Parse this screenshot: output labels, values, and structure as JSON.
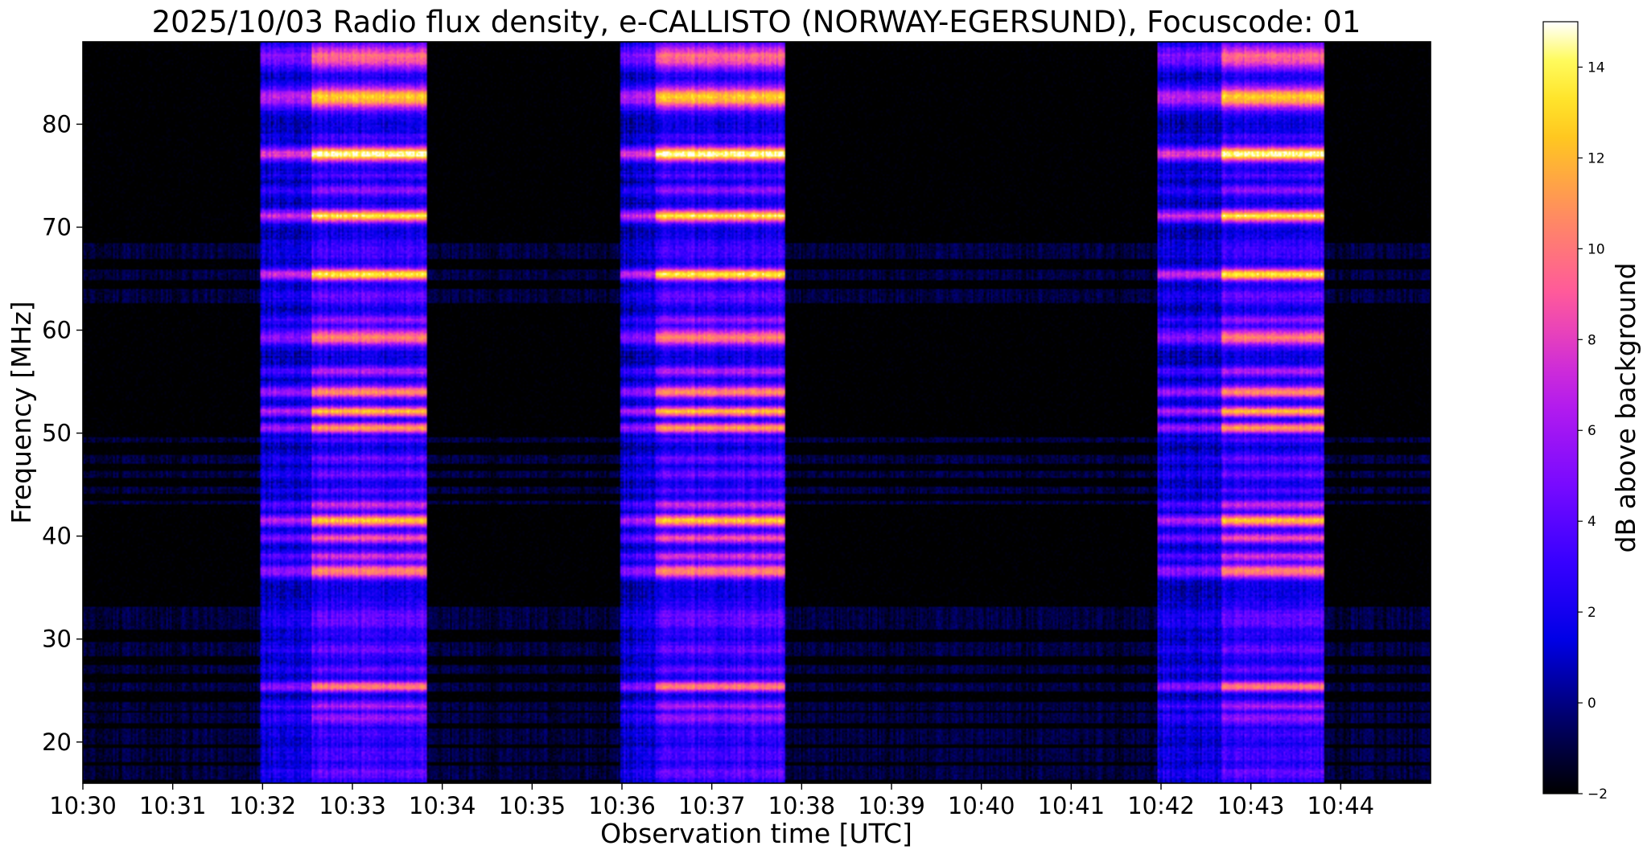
{
  "chart_data": {
    "type": "heatmap",
    "title": "2025/10/03  Radio flux density, e-CALLISTO (NORWAY-EGERSUND), Focuscode: 01",
    "xlabel": "Observation time [UTC]",
    "ylabel": "Frequency [MHz]",
    "colorbar_label": "dB above background",
    "colormap": "gnuplot2",
    "x_range_minutes": [
      0,
      15
    ],
    "x_ticks": [
      {
        "value": 0,
        "label": "10:30"
      },
      {
        "value": 1,
        "label": "10:31"
      },
      {
        "value": 2,
        "label": "10:32"
      },
      {
        "value": 3,
        "label": "10:33"
      },
      {
        "value": 4,
        "label": "10:34"
      },
      {
        "value": 5,
        "label": "10:35"
      },
      {
        "value": 6,
        "label": "10:36"
      },
      {
        "value": 7,
        "label": "10:37"
      },
      {
        "value": 8,
        "label": "10:38"
      },
      {
        "value": 9,
        "label": "10:39"
      },
      {
        "value": 10,
        "label": "10:40"
      },
      {
        "value": 11,
        "label": "10:41"
      },
      {
        "value": 12,
        "label": "10:42"
      },
      {
        "value": 13,
        "label": "10:43"
      },
      {
        "value": 14,
        "label": "10:44"
      }
    ],
    "ylim": [
      16,
      88
    ],
    "y_ticks": [
      {
        "value": 20,
        "label": "20"
      },
      {
        "value": 30,
        "label": "30"
      },
      {
        "value": 40,
        "label": "40"
      },
      {
        "value": 50,
        "label": "50"
      },
      {
        "value": 60,
        "label": "60"
      },
      {
        "value": 70,
        "label": "70"
      },
      {
        "value": 80,
        "label": "80"
      }
    ],
    "clim": [
      -2,
      15
    ],
    "colorbar_ticks": [
      {
        "value": -2,
        "label": "−2"
      },
      {
        "value": 0,
        "label": "0"
      },
      {
        "value": 2,
        "label": "2"
      },
      {
        "value": 4,
        "label": "4"
      },
      {
        "value": 6,
        "label": "6"
      },
      {
        "value": 8,
        "label": "8"
      },
      {
        "value": 10,
        "label": "10"
      },
      {
        "value": 12,
        "label": "12"
      },
      {
        "value": 14,
        "label": "14"
      }
    ],
    "burst_episodes_minutes": [
      {
        "start": 1.97,
        "core_start": 2.55,
        "end": 3.82,
        "peak_db": 13
      },
      {
        "start": 5.98,
        "core_start": 6.38,
        "end": 7.82,
        "peak_db": 14
      },
      {
        "start": 11.97,
        "core_start": 12.68,
        "end": 13.82,
        "peak_db": 13
      }
    ],
    "emission_lanes": [
      {
        "mhz": 17.0,
        "width": 0.8,
        "db": 2.5
      },
      {
        "mhz": 18.8,
        "width": 0.8,
        "db": 2.0
      },
      {
        "mhz": 20.6,
        "width": 0.9,
        "db": 1.5
      },
      {
        "mhz": 22.3,
        "width": 0.6,
        "db": 4.0
      },
      {
        "mhz": 23.5,
        "width": 0.5,
        "db": 4.5
      },
      {
        "mhz": 25.4,
        "width": 0.5,
        "db": 9.0
      },
      {
        "mhz": 27.0,
        "width": 0.5,
        "db": 2.5
      },
      {
        "mhz": 29.0,
        "width": 0.8,
        "db": 2.5
      },
      {
        "mhz": 32.0,
        "width": 1.4,
        "db": 2.5
      },
      {
        "mhz": 36.6,
        "width": 0.7,
        "db": 9.0
      },
      {
        "mhz": 38.0,
        "width": 0.5,
        "db": 6.0
      },
      {
        "mhz": 39.8,
        "width": 0.5,
        "db": 7.0
      },
      {
        "mhz": 41.5,
        "width": 0.6,
        "db": 11.0
      },
      {
        "mhz": 43.0,
        "width": 0.5,
        "db": 5.5
      },
      {
        "mhz": 44.4,
        "width": 0.4,
        "db": 2.0
      },
      {
        "mhz": 46.0,
        "width": 0.5,
        "db": 3.0
      },
      {
        "mhz": 47.5,
        "width": 0.5,
        "db": 3.0
      },
      {
        "mhz": 49.3,
        "width": 0.3,
        "db": 2.0
      },
      {
        "mhz": 50.5,
        "width": 0.5,
        "db": 10.0
      },
      {
        "mhz": 52.1,
        "width": 0.5,
        "db": 10.5
      },
      {
        "mhz": 54.0,
        "width": 0.6,
        "db": 9.0
      },
      {
        "mhz": 56.0,
        "width": 0.5,
        "db": 5.0
      },
      {
        "mhz": 59.3,
        "width": 0.8,
        "db": 9.0
      },
      {
        "mhz": 61.0,
        "width": 0.5,
        "db": 4.0
      },
      {
        "mhz": 63.3,
        "width": 0.9,
        "db": 2.5
      },
      {
        "mhz": 65.4,
        "width": 0.6,
        "db": 12.0
      },
      {
        "mhz": 67.7,
        "width": 1.0,
        "db": 2.0
      },
      {
        "mhz": 71.1,
        "width": 0.6,
        "db": 12.0
      },
      {
        "mhz": 73.6,
        "width": 0.5,
        "db": 4.0
      },
      {
        "mhz": 75.0,
        "width": 0.4,
        "db": 2.0
      },
      {
        "mhz": 77.1,
        "width": 0.7,
        "db": 13.5
      },
      {
        "mhz": 78.7,
        "width": 0.4,
        "db": 1.8
      },
      {
        "mhz": 82.6,
        "width": 1.1,
        "db": 11.0
      },
      {
        "mhz": 86.5,
        "width": 1.2,
        "db": 8.0
      }
    ]
  }
}
